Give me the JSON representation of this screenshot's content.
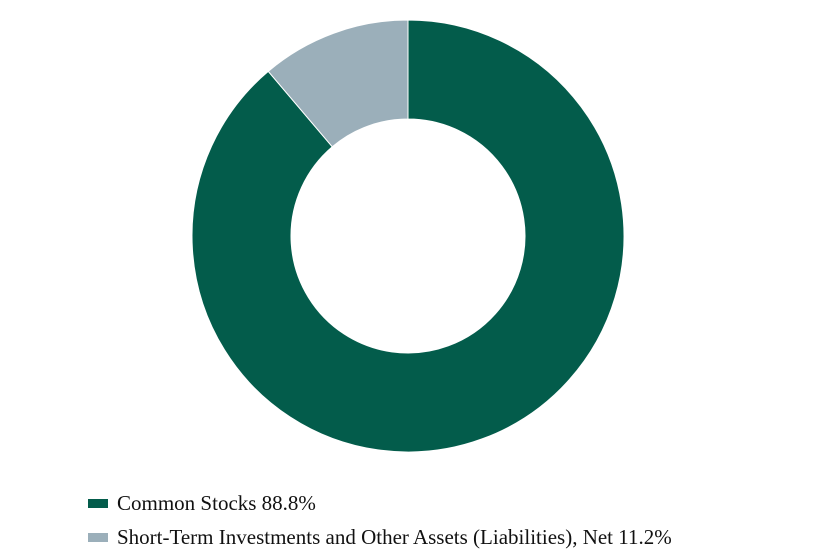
{
  "chart_data": {
    "type": "pie",
    "variant": "donut",
    "title": "",
    "start_angle_deg": 0,
    "direction": "clockwise",
    "legend_position": "bottom-left",
    "slices": [
      {
        "label": "Common Stocks 88.8%",
        "value": 88.8,
        "color": "#035c4b"
      },
      {
        "label": "Short-Term Investments and Other Assets (Liabilities), Net 11.2%",
        "value": 11.2,
        "color": "#9bafba"
      }
    ]
  }
}
